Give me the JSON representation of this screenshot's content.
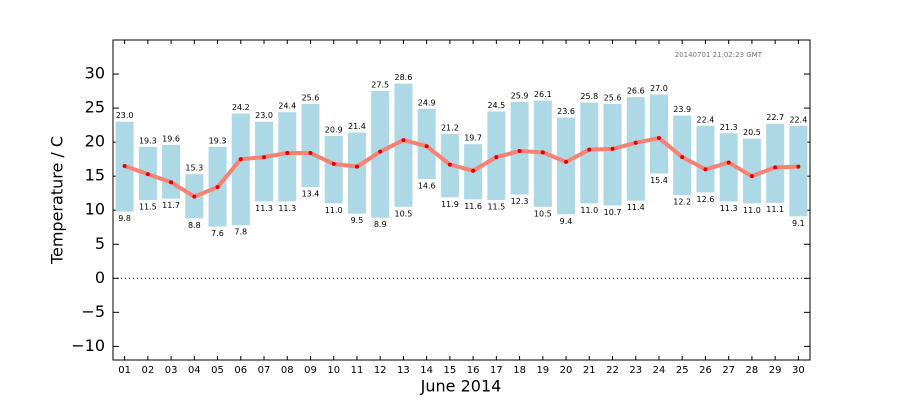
{
  "chart_data": {
    "type": "range-bar",
    "stamp": "20140701 21:02:23 GMT",
    "xlabel": "June 2014",
    "ylabel": "Temperature / C",
    "categories": [
      "01",
      "02",
      "03",
      "04",
      "05",
      "06",
      "07",
      "08",
      "09",
      "10",
      "11",
      "12",
      "13",
      "14",
      "15",
      "16",
      "17",
      "18",
      "19",
      "20",
      "21",
      "22",
      "23",
      "24",
      "25",
      "26",
      "27",
      "28",
      "29",
      "30"
    ],
    "high": {
      "color": "#add8e6",
      "values": [
        23.0,
        19.3,
        19.6,
        15.3,
        19.3,
        24.2,
        23.0,
        24.4,
        25.6,
        20.9,
        21.4,
        27.5,
        28.6,
        24.9,
        21.2,
        19.7,
        24.5,
        25.9,
        26.1,
        23.6,
        25.8,
        25.6,
        26.6,
        27.0,
        23.9,
        22.4,
        21.3,
        20.5,
        22.7,
        22.4
      ],
      "value_labels": [
        "23.0",
        "19.3",
        "19.6",
        "15.3",
        "19.3",
        "24.2",
        "23.0",
        "24.4",
        "25.6",
        "20.9",
        "21.4",
        "27.5",
        "28.6",
        "24.9",
        "21.2",
        "19.7",
        "24.5",
        "25.9",
        "26.1",
        "23.6",
        "25.8",
        "25.6",
        "26.6",
        "27.0",
        "23.9",
        "22.4",
        "21.3",
        "20.5",
        "22.7",
        "22.4"
      ]
    },
    "low": {
      "values": [
        9.8,
        11.5,
        11.7,
        8.8,
        7.6,
        7.8,
        11.3,
        11.3,
        13.4,
        11.0,
        9.5,
        8.9,
        10.5,
        14.6,
        11.9,
        11.6,
        11.5,
        12.3,
        10.5,
        9.4,
        11.0,
        10.7,
        11.4,
        15.4,
        12.2,
        12.6,
        11.3,
        11.0,
        11.1,
        9.1
      ],
      "value_labels": [
        "9.8",
        "11.5",
        "11.7",
        "8.8",
        "7.6",
        "7.8",
        "11.3",
        "11.3",
        "13.4",
        "11.0",
        "9.5",
        "8.9",
        "10.5",
        "14.6",
        "11.9",
        "11.6",
        "11.5",
        "12.3",
        "10.5",
        "9.4",
        "11.0",
        "10.7",
        "11.4",
        "15.4",
        "12.2",
        "12.6",
        "11.3",
        "11.0",
        "11.1",
        "9.1"
      ]
    },
    "mean": {
      "color": "#fa8072",
      "marker_color": "#e00000",
      "values": [
        16.5,
        15.3,
        14.1,
        12.0,
        13.4,
        17.5,
        17.8,
        18.4,
        18.4,
        16.8,
        16.4,
        18.6,
        20.3,
        19.4,
        16.7,
        15.8,
        17.8,
        18.7,
        18.5,
        17.1,
        18.9,
        19.0,
        19.9,
        20.6,
        17.8,
        16.0,
        17.0,
        15.0,
        16.3,
        16.4
      ]
    },
    "hline": {
      "value": 0,
      "color": "#0000cc"
    },
    "ylim": [
      -12,
      35
    ],
    "yticks": [
      {
        "value": -10,
        "label": "−10"
      },
      {
        "value": -5,
        "label": "−5"
      },
      0,
      5,
      10,
      15,
      20,
      25,
      30
    ]
  }
}
